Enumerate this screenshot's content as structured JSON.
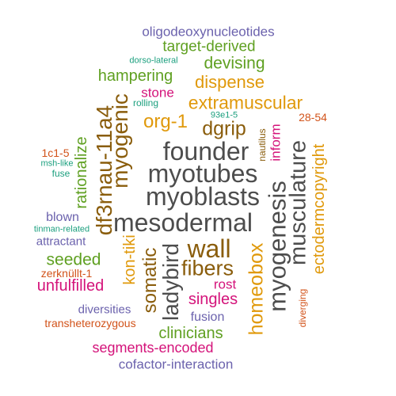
{
  "palette": {
    "gray": "#4d4d4d",
    "olive": "#8a5d0c",
    "orange": "#e0990b",
    "purple": "#6b62ad",
    "green": "#5fa021",
    "magenta": "#d4137a",
    "teal": "#1b9f7e",
    "rust": "#d2531a"
  },
  "words": [
    {
      "text": "oligodeoxynucleotides",
      "color": "purple"
    },
    {
      "text": "target-derived",
      "color": "green"
    },
    {
      "text": "dorso-lateral",
      "color": "teal"
    },
    {
      "text": "devising",
      "color": "green"
    },
    {
      "text": "hampering",
      "color": "green"
    },
    {
      "text": "dispense",
      "color": "orange"
    },
    {
      "text": "stone",
      "color": "magenta"
    },
    {
      "text": "rolling",
      "color": "teal"
    },
    {
      "text": "extramuscular",
      "color": "orange"
    },
    {
      "text": "93e1-5",
      "color": "teal"
    },
    {
      "text": "myogenic",
      "color": "olive"
    },
    {
      "text": "org-1",
      "color": "orange"
    },
    {
      "text": "dgrip",
      "color": "olive"
    },
    {
      "text": "28-54",
      "color": "rust"
    },
    {
      "text": "rationalize",
      "color": "green"
    },
    {
      "text": "df3rnau-11a4",
      "color": "olive"
    },
    {
      "text": "founder",
      "color": "gray"
    },
    {
      "text": "inform",
      "color": "magenta"
    },
    {
      "text": "nautilus",
      "color": "olive"
    },
    {
      "text": "ectodermcopyright",
      "color": "orange"
    },
    {
      "text": "musculature",
      "color": "gray"
    },
    {
      "text": "1c1-5",
      "color": "rust"
    },
    {
      "text": "msh-like",
      "color": "teal"
    },
    {
      "text": "fuse",
      "color": "teal"
    },
    {
      "text": "myotubes",
      "color": "gray"
    },
    {
      "text": "myoblasts",
      "color": "gray"
    },
    {
      "text": "myogenesis",
      "color": "gray"
    },
    {
      "text": "blown",
      "color": "purple"
    },
    {
      "text": "tinman-related",
      "color": "teal"
    },
    {
      "text": "mesodermal",
      "color": "gray"
    },
    {
      "text": "attractant",
      "color": "purple"
    },
    {
      "text": "kon-tiki",
      "color": "orange"
    },
    {
      "text": "wall",
      "color": "olive"
    },
    {
      "text": "seeded",
      "color": "green"
    },
    {
      "text": "ladybird",
      "color": "gray"
    },
    {
      "text": "somatic",
      "color": "olive"
    },
    {
      "text": "fibers",
      "color": "olive"
    },
    {
      "text": "homeobox",
      "color": "orange"
    },
    {
      "text": "zerknüllt-1",
      "color": "rust"
    },
    {
      "text": "unfulfilled",
      "color": "magenta"
    },
    {
      "text": "rost",
      "color": "magenta"
    },
    {
      "text": "singles",
      "color": "magenta"
    },
    {
      "text": "diverging",
      "color": "rust"
    },
    {
      "text": "diversities",
      "color": "purple"
    },
    {
      "text": "fusion",
      "color": "purple"
    },
    {
      "text": "transheterozygous",
      "color": "rust"
    },
    {
      "text": "clinicians",
      "color": "green"
    },
    {
      "text": "segments-encoded",
      "color": "magenta"
    },
    {
      "text": "cofactor-interaction",
      "color": "purple"
    }
  ]
}
